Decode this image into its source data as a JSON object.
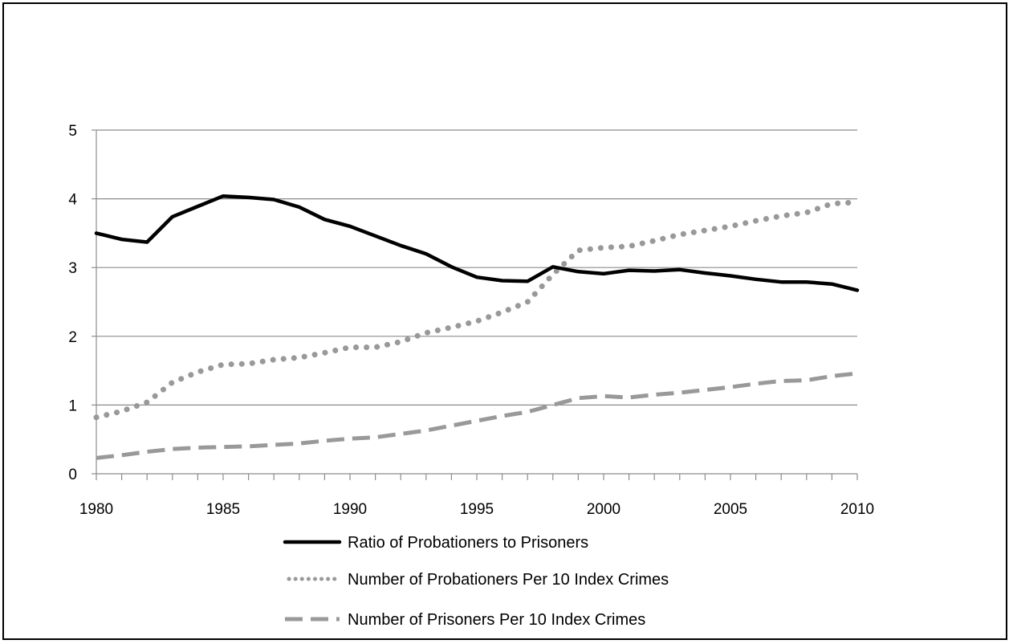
{
  "chart_data": {
    "type": "line",
    "title": "",
    "xlabel": "",
    "ylabel": "",
    "xlim": [
      1980,
      2010
    ],
    "ylim": [
      0,
      5
    ],
    "grid": true,
    "legend_position": "bottom",
    "x": [
      1980,
      1981,
      1982,
      1983,
      1984,
      1985,
      1986,
      1987,
      1988,
      1989,
      1990,
      1991,
      1992,
      1993,
      1994,
      1995,
      1996,
      1997,
      1998,
      1999,
      2000,
      2001,
      2002,
      2003,
      2004,
      2005,
      2006,
      2007,
      2008,
      2009,
      2010
    ],
    "x_ticks": [
      "1980",
      "1985",
      "1990",
      "1995",
      "2000",
      "2005",
      "2010"
    ],
    "y_ticks": [
      "0",
      "1",
      "2",
      "3",
      "4",
      "5"
    ],
    "series": [
      {
        "name": "Ratio of Probationers to Prisoners",
        "style": "solid",
        "color": "#000000",
        "values": [
          3.5,
          3.41,
          3.37,
          3.74,
          3.89,
          4.04,
          4.02,
          3.99,
          3.88,
          3.7,
          3.6,
          3.46,
          3.32,
          3.2,
          3.01,
          2.86,
          2.81,
          2.8,
          3.01,
          2.94,
          2.91,
          2.96,
          2.95,
          2.97,
          2.92,
          2.88,
          2.83,
          2.79,
          2.79,
          2.76,
          2.67
        ]
      },
      {
        "name": "Number of Probationers Per 10 Index Crimes",
        "style": "dotted",
        "color": "#999999",
        "values": [
          0.82,
          0.91,
          1.04,
          1.33,
          1.48,
          1.59,
          1.6,
          1.66,
          1.69,
          1.76,
          1.84,
          1.84,
          1.92,
          2.05,
          2.13,
          2.22,
          2.35,
          2.5,
          2.9,
          3.25,
          3.29,
          3.31,
          3.39,
          3.48,
          3.54,
          3.6,
          3.68,
          3.75,
          3.8,
          3.93,
          3.95
        ]
      },
      {
        "name": "Number of Prisoners Per 10 Index Crimes",
        "style": "dashed",
        "color": "#999999",
        "values": [
          0.23,
          0.27,
          0.32,
          0.36,
          0.38,
          0.39,
          0.4,
          0.42,
          0.44,
          0.48,
          0.51,
          0.53,
          0.58,
          0.63,
          0.7,
          0.77,
          0.84,
          0.9,
          1.0,
          1.1,
          1.13,
          1.11,
          1.15,
          1.18,
          1.22,
          1.26,
          1.31,
          1.35,
          1.36,
          1.42,
          1.46
        ]
      }
    ]
  }
}
